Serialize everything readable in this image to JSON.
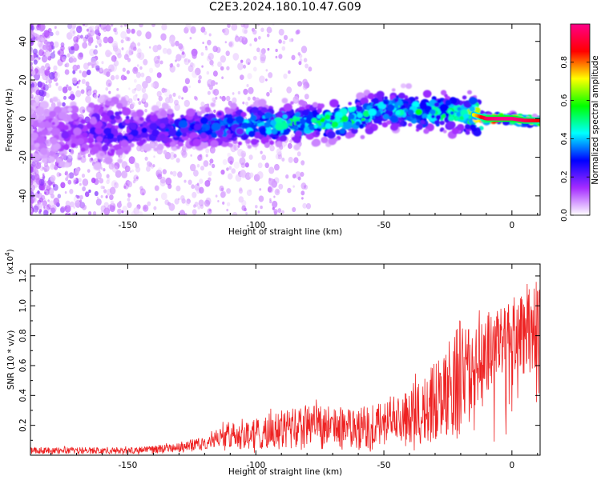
{
  "figure_title": "C2E3.2024.180.10.47.G09",
  "chart_data": [
    {
      "type": "heatmap",
      "title": "C2E3.2024.180.10.47.G09",
      "xlabel": "Height of straight line (km)",
      "ylabel": "Frequency (Hz)",
      "xlim": [
        -188,
        11
      ],
      "ylim": [
        -50,
        49
      ],
      "x_ticks": [
        -150,
        -100,
        -50,
        0
      ],
      "x_tick_labels": [
        "-150",
        "-100",
        "-50",
        "0"
      ],
      "y_ticks": [
        -40,
        -20,
        0,
        20,
        40
      ],
      "y_tick_labels": [
        "-40",
        "-20",
        "0",
        "20",
        "40"
      ],
      "grid": false,
      "colormap": "rainbow",
      "colorbar": {
        "label": "Normalized spectral amplitude",
        "range": [
          0.0,
          1.0
        ],
        "ticks": [
          0.0,
          0.2,
          0.4,
          0.6,
          0.8
        ],
        "tick_labels": [
          "0.0",
          "0.2",
          "0.4",
          "0.6",
          "0.8"
        ],
        "color_stops": [
          "#ffffff",
          "#a52cff",
          "#0000ff",
          "#00ffff",
          "#00ff00",
          "#ffff00",
          "#ff0000",
          "#ff0088"
        ]
      },
      "ridge": {
        "x": [
          -188,
          -175,
          -160,
          -150,
          -140,
          -130,
          -120,
          -110,
          -100,
          -90,
          -80,
          -70,
          -60,
          -50,
          -40,
          -30,
          -20,
          -15,
          -10,
          -5,
          0,
          5,
          11
        ],
        "y": [
          -8,
          -7,
          -6,
          -6,
          -5,
          -5,
          -5,
          -4,
          -3,
          -3,
          -2,
          -1,
          1,
          5,
          4,
          3,
          2,
          2,
          0,
          0,
          0,
          -1,
          -1
        ],
        "peak_amplitude": [
          0.12,
          0.18,
          0.25,
          0.3,
          0.32,
          0.35,
          0.38,
          0.45,
          0.5,
          0.55,
          0.55,
          0.6,
          0.6,
          0.5,
          0.55,
          0.6,
          0.6,
          0.7,
          0.95,
          1.0,
          1.0,
          0.95,
          0.85
        ]
      }
    },
    {
      "type": "line",
      "xlabel": "Height of straight line (km)",
      "ylabel": "SNR (10 * v/v)",
      "y_multiplier": "(x10",
      "y_multiplier_exp": "4",
      "y_multiplier_close": ")",
      "xlim": [
        -188,
        11
      ],
      "ylim": [
        0,
        1.28
      ],
      "x_ticks": [
        -150,
        -100,
        -50,
        0
      ],
      "x_tick_labels": [
        "-150",
        "-100",
        "-50",
        "0"
      ],
      "y_ticks": [
        0.2,
        0.4,
        0.6,
        0.8,
        1.0,
        1.2
      ],
      "y_tick_labels": [
        "0.2",
        "0.4",
        "0.6",
        "0.8",
        "1.0",
        "1.2"
      ],
      "grid": false,
      "series": [
        {
          "color": "#ee2222",
          "x": [
            -188,
            -180,
            -170,
            -160,
            -150,
            -140,
            -130,
            -125,
            -120,
            -115,
            -110,
            -105,
            -100,
            -95,
            -90,
            -85,
            -80,
            -75,
            -70,
            -65,
            -60,
            -55,
            -50,
            -45,
            -40,
            -35,
            -30,
            -25,
            -20,
            -15,
            -10,
            -5,
            0,
            5,
            11
          ],
          "y": [
            0.03,
            0.03,
            0.03,
            0.03,
            0.03,
            0.04,
            0.05,
            0.07,
            0.08,
            0.12,
            0.14,
            0.14,
            0.15,
            0.16,
            0.17,
            0.17,
            0.19,
            0.18,
            0.18,
            0.18,
            0.19,
            0.19,
            0.21,
            0.23,
            0.26,
            0.3,
            0.37,
            0.44,
            0.5,
            0.6,
            0.66,
            0.74,
            0.82,
            0.85,
            0.82
          ],
          "envelope": [
            0.06,
            0.06,
            0.06,
            0.06,
            0.06,
            0.07,
            0.09,
            0.12,
            0.14,
            0.2,
            0.26,
            0.28,
            0.3,
            0.32,
            0.35,
            0.36,
            0.4,
            0.38,
            0.36,
            0.36,
            0.38,
            0.38,
            0.4,
            0.42,
            0.5,
            0.6,
            0.72,
            0.85,
            1.1,
            1.0,
            1.02,
            1.05,
            1.15,
            1.26,
            1.2
          ]
        }
      ]
    }
  ]
}
